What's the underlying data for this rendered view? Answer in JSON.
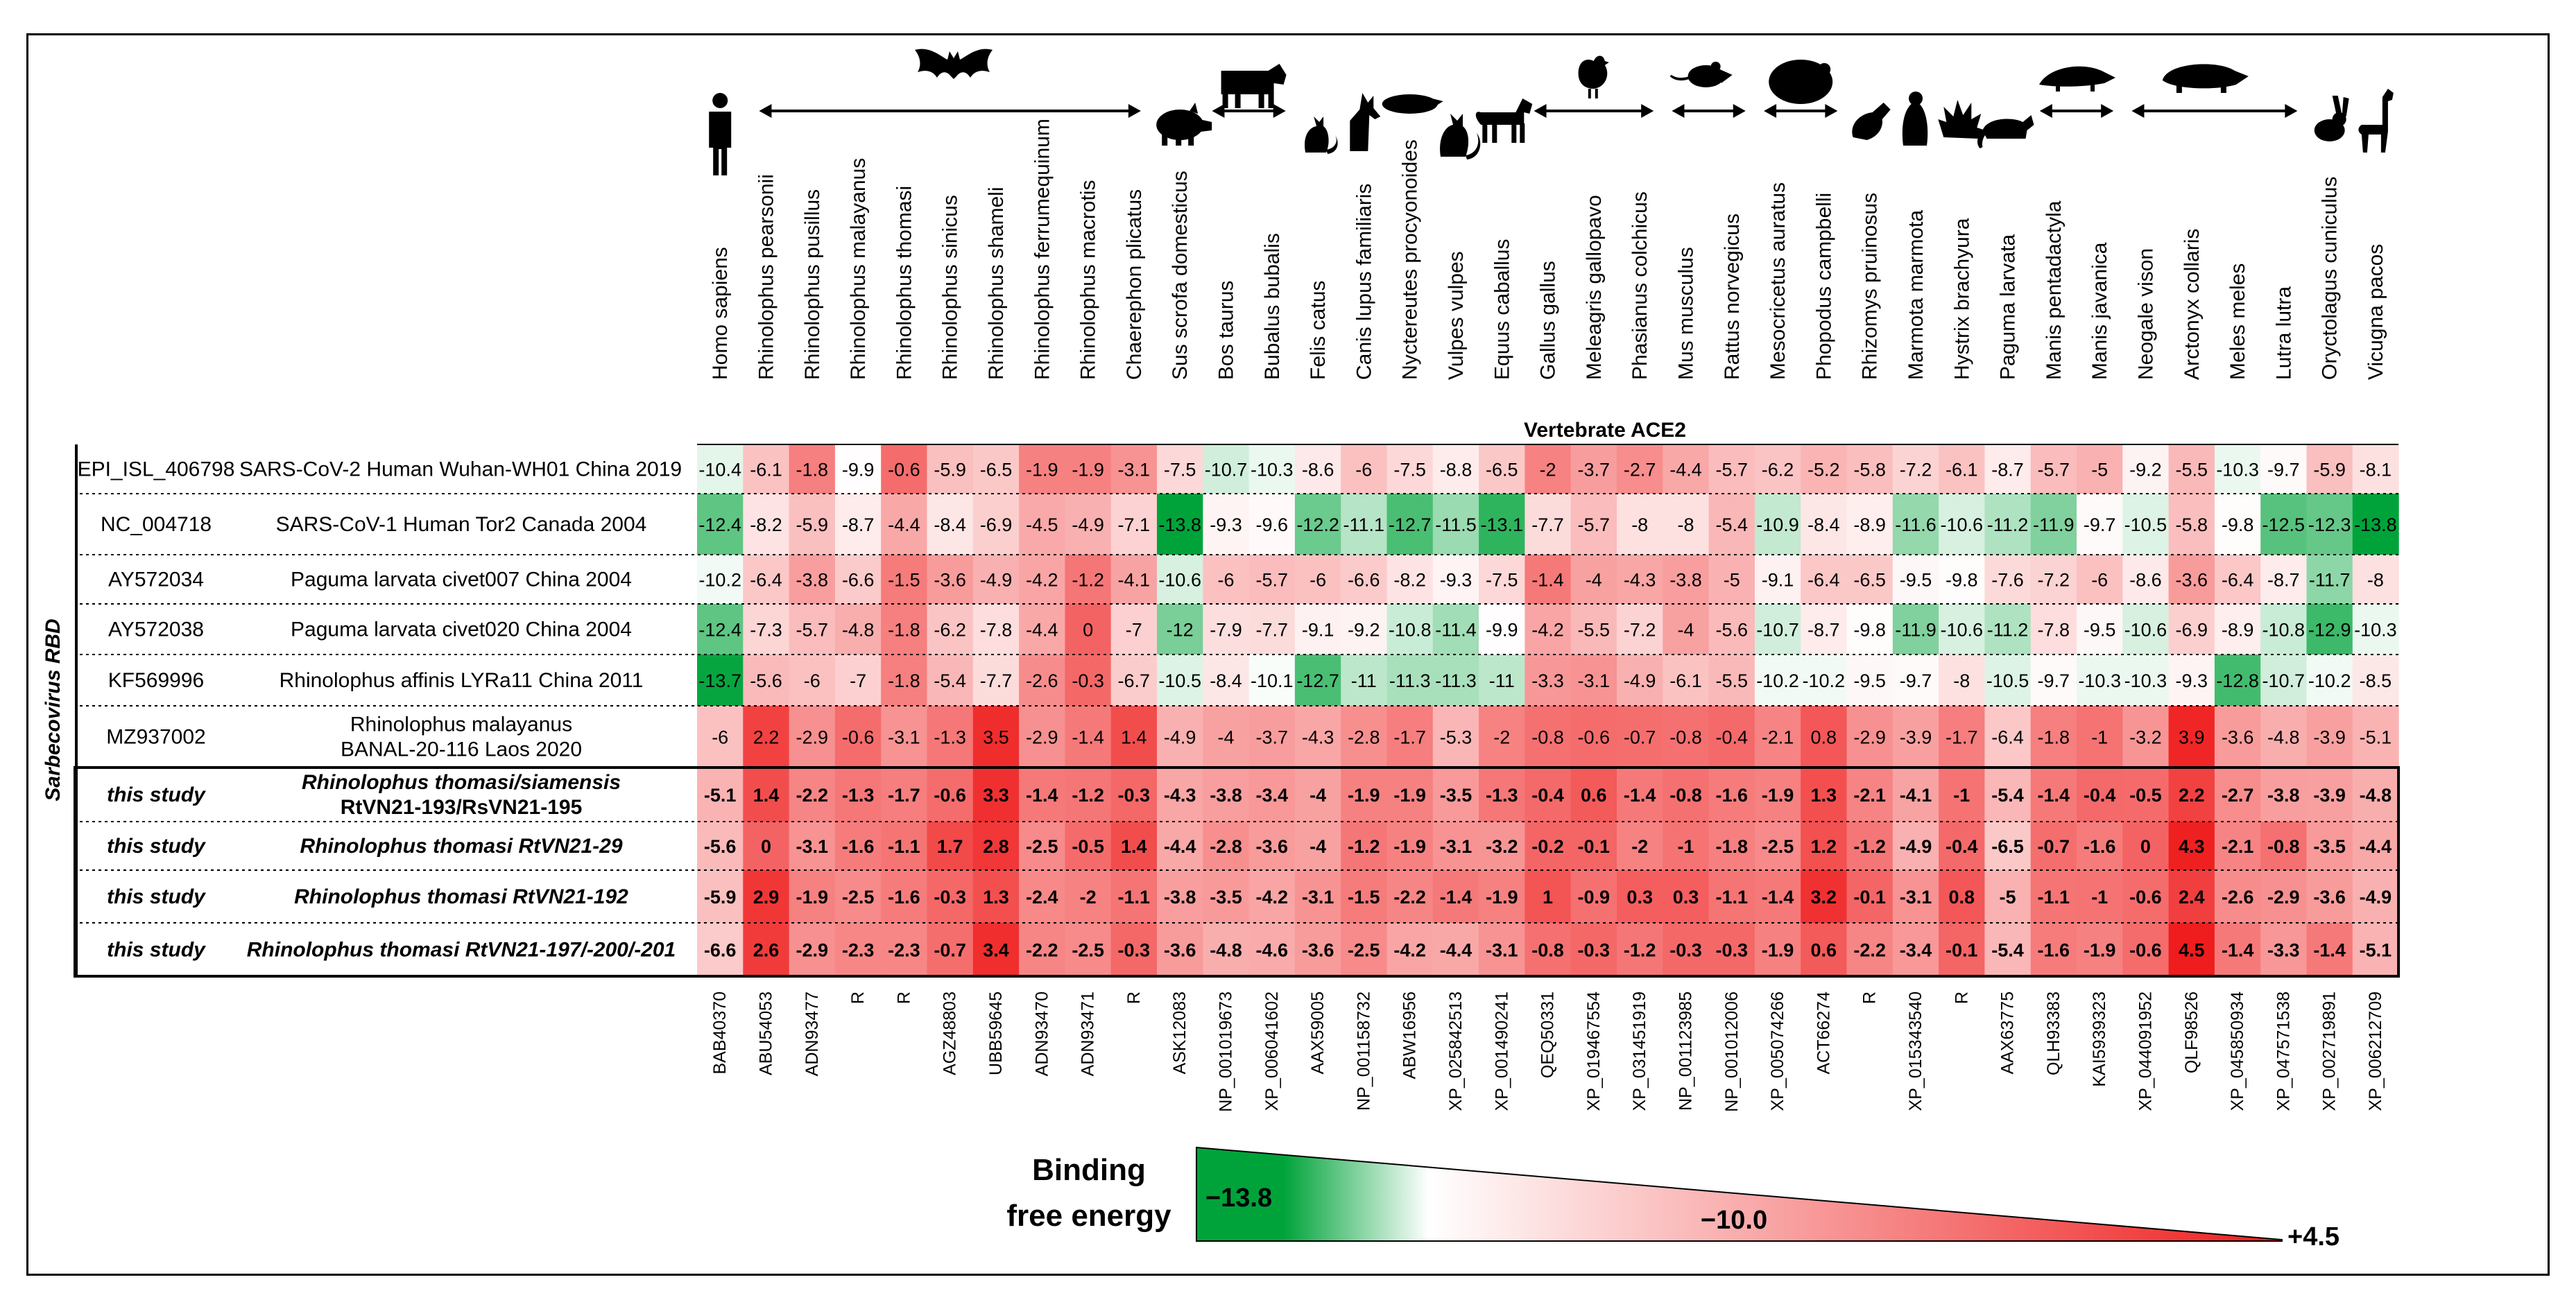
{
  "chart_data": {
    "type": "heatmap",
    "title": "Vertebrate ACE2",
    "ylabel": "Sarbecovirus RBD",
    "columns": [
      {
        "species": "Homo sapiens",
        "accession": "BAB40370",
        "icon": "human-icon"
      },
      {
        "species": "Rhinolophus pearsonii",
        "accession": "ABU54053",
        "icon": "bat-icon"
      },
      {
        "species": "Rhinolophus pusillus",
        "accession": "ADN93477",
        "icon": "bat-icon"
      },
      {
        "species": "Rhinolophus malayanus",
        "accession": "R",
        "icon": "bat-icon"
      },
      {
        "species": "Rhinolophus thomasi",
        "accession": "R",
        "icon": "bat-icon"
      },
      {
        "species": "Rhinolophus sinicus",
        "accession": "AGZ48803",
        "icon": "bat-icon"
      },
      {
        "species": "Rhinolophus shameli",
        "accession": "UBB59645",
        "icon": "bat-icon"
      },
      {
        "species": "Rhinolophus ferrumequinum",
        "accession": "ADN93470",
        "icon": "bat-icon"
      },
      {
        "species": "Rhinolophus macrotis",
        "accession": "ADN93471",
        "icon": "bat-icon"
      },
      {
        "species": "Chaerephon plicatus",
        "accession": "R",
        "icon": "bat-icon"
      },
      {
        "species": "Sus scrofa domesticus",
        "accession": "ASK12083",
        "icon": "pig-icon"
      },
      {
        "species": "Bos taurus",
        "accession": "NP_001019673",
        "icon": "cow-icon"
      },
      {
        "species": "Bubalus bubalis",
        "accession": "XP_006041602",
        "icon": "cow-icon"
      },
      {
        "species": "Felis catus",
        "accession": "AAX59005",
        "icon": "cat-icon"
      },
      {
        "species": "Canis lupus familiaris",
        "accession": "NP_001158732",
        "icon": "dog-icon"
      },
      {
        "species": "Nyctereutes procyonoides",
        "accession": "ABW16956",
        "icon": "raccoon-dog-icon"
      },
      {
        "species": "Vulpes vulpes",
        "accession": "XP_025842513",
        "icon": "fox-icon"
      },
      {
        "species": "Equus caballus",
        "accession": "XP_001490241",
        "icon": "horse-icon"
      },
      {
        "species": "Gallus gallus",
        "accession": "QEQ50331",
        "icon": "bird-icon"
      },
      {
        "species": "Meleagris gallopavo",
        "accession": "XP_019467554",
        "icon": "bird-icon"
      },
      {
        "species": "Phasianus colchicus",
        "accession": "XP_031451919",
        "icon": "bird-icon"
      },
      {
        "species": "Mus musculus",
        "accession": "NP_001123985",
        "icon": "rodent-icon"
      },
      {
        "species": "Rattus norvegicus",
        "accession": "NP_001012006",
        "icon": "rodent-icon"
      },
      {
        "species": "Mesocricetus auratus",
        "accession": "XP_005074266",
        "icon": "hamster-icon"
      },
      {
        "species": "Phopodus campbelli",
        "accession": "ACT66274",
        "icon": "hamster-icon"
      },
      {
        "species": "Rhizomys pruinosus",
        "accession": "R",
        "icon": "bamboo-rat-icon"
      },
      {
        "species": "Marmota marmota",
        "accession": "XP_015343540",
        "icon": "marmot-icon"
      },
      {
        "species": "Hystrix brachyura",
        "accession": "R",
        "icon": "porcupine-icon"
      },
      {
        "species": "Paguma larvata",
        "accession": "AAX63775",
        "icon": "civet-icon"
      },
      {
        "species": "Manis pentadactyla",
        "accession": "QLH93383",
        "icon": "pangolin-icon"
      },
      {
        "species": "Manis javanica",
        "accession": "KAI5939323",
        "icon": "pangolin-icon"
      },
      {
        "species": "Neogale vison",
        "accession": "XP_044091952",
        "icon": "badger-icon"
      },
      {
        "species": "Arctonyx collaris",
        "accession": "QLF98526",
        "icon": "badger-icon"
      },
      {
        "species": "Meles meles",
        "accession": "XP_045850934",
        "icon": "badger-icon"
      },
      {
        "species": "Lutra lutra",
        "accession": "XP_047571538",
        "icon": "badger-icon"
      },
      {
        "species": "Oryctolagus cuniculus",
        "accession": "XP_002719891",
        "icon": "rabbit-icon"
      },
      {
        "species": "Vicugna pacos",
        "accession": "XP_006212709",
        "icon": "alpaca-icon"
      }
    ],
    "rows": [
      {
        "id": "EPI_ISL_406798",
        "name": "SARS-CoV-2 Human Wuhan-WH01 China 2019",
        "name2": "",
        "bold": false,
        "values": [
          -10.4,
          -6.1,
          -1.8,
          -9.9,
          -0.6,
          -5.9,
          -6.5,
          -1.9,
          -1.9,
          -3.1,
          -7.5,
          -10.7,
          -10.3,
          -8.6,
          -6.0,
          -7.5,
          -8.8,
          -6.5,
          -2.0,
          -3.7,
          -2.7,
          -4.4,
          -5.7,
          -6.2,
          -5.2,
          -5.8,
          -7.2,
          -6.1,
          -8.7,
          -5.7,
          -5.0,
          -9.2,
          -5.5,
          -10.3,
          -9.7,
          -5.9,
          -8.1
        ]
      },
      {
        "id": "NC_004718",
        "name": "SARS-CoV-1 Human Tor2 Canada 2004",
        "name2": "",
        "bold": false,
        "values": [
          -12.4,
          -8.2,
          -5.9,
          -8.7,
          -4.4,
          -8.4,
          -6.9,
          -4.5,
          -4.9,
          -7.1,
          -13.8,
          -9.3,
          -9.6,
          -12.2,
          -11.1,
          -12.7,
          -11.5,
          -13.1,
          -7.7,
          -5.7,
          -8.0,
          -8.0,
          -5.4,
          -10.9,
          -8.4,
          -8.9,
          -11.6,
          -10.6,
          -11.2,
          -11.9,
          -9.7,
          -10.5,
          -5.8,
          -9.8,
          -12.5,
          -12.3,
          -13.8
        ]
      },
      {
        "id": "AY572034",
        "name": "Paguma larvata civet007 China 2004",
        "name2": "",
        "bold": false,
        "values": [
          -10.2,
          -6.4,
          -3.8,
          -6.6,
          -1.5,
          -3.6,
          -4.9,
          -4.2,
          -1.2,
          -4.1,
          -10.6,
          -6.0,
          -5.7,
          -6.0,
          -6.6,
          -8.2,
          -9.3,
          -7.5,
          -1.4,
          -4.0,
          -4.3,
          -3.8,
          -5.0,
          -9.1,
          -6.4,
          -6.5,
          -9.5,
          -9.8,
          -7.6,
          -7.2,
          -6.0,
          -8.6,
          -3.6,
          -6.4,
          -8.7,
          -11.7,
          -8.0
        ]
      },
      {
        "id": "AY572038",
        "name": "Paguma larvata civet020 China 2004",
        "name2": "",
        "bold": false,
        "values": [
          -12.4,
          -7.3,
          -5.7,
          -4.8,
          -1.8,
          -6.2,
          -7.8,
          -4.4,
          0.0,
          -7.0,
          -12.0,
          -7.9,
          -7.7,
          -9.1,
          -9.2,
          -10.8,
          -11.4,
          -9.9,
          -4.2,
          -5.5,
          -7.2,
          -4.0,
          -5.6,
          -10.7,
          -8.7,
          -9.8,
          -11.9,
          -10.6,
          -11.2,
          -7.8,
          -9.5,
          -10.6,
          -6.9,
          -8.9,
          -10.8,
          -12.9,
          -10.3
        ]
      },
      {
        "id": "KF569996",
        "name": "Rhinolophus affinis LYRa11 China 2011",
        "name2": "",
        "bold": false,
        "values": [
          -13.7,
          -5.6,
          -6.0,
          -7.0,
          -1.8,
          -5.4,
          -7.7,
          -2.6,
          -0.3,
          -6.7,
          -10.5,
          -8.4,
          -10.1,
          -12.7,
          -11.0,
          -11.3,
          -11.3,
          -11.0,
          -3.3,
          -3.1,
          -4.9,
          -6.1,
          -5.5,
          -10.2,
          -10.2,
          -9.5,
          -9.7,
          -8.0,
          -10.5,
          -9.7,
          -10.3,
          -10.3,
          -9.3,
          -12.8,
          -10.7,
          -10.2,
          -8.5
        ]
      },
      {
        "id": "MZ937002",
        "name": "Rhinolophus malayanus",
        "name2": "BANAL-20-116 Laos 2020",
        "bold": false,
        "values": [
          -6.0,
          2.2,
          -2.9,
          -0.6,
          -3.1,
          -1.3,
          3.5,
          -2.9,
          -1.4,
          1.4,
          -4.9,
          -4.0,
          -3.7,
          -4.3,
          -2.8,
          -1.7,
          -5.3,
          -2.0,
          -0.8,
          -0.6,
          -0.7,
          -0.8,
          -0.4,
          -2.1,
          0.8,
          -2.9,
          -3.9,
          -1.7,
          -6.4,
          -1.8,
          -1.0,
          -3.2,
          3.9,
          -3.6,
          -4.8,
          -3.9,
          -5.1
        ]
      },
      {
        "id": "this study",
        "name": "Rhinolophus thomasi/siamensis",
        "name2": "RtVN21-193/RsVN21-195",
        "bold": true,
        "values": [
          -5.1,
          1.4,
          -2.2,
          -1.3,
          -1.7,
          -0.6,
          3.3,
          -1.4,
          -1.2,
          -0.3,
          -4.3,
          -3.8,
          -3.4,
          -4.0,
          -1.9,
          -1.9,
          -3.5,
          -1.3,
          -0.4,
          0.6,
          -1.4,
          -0.8,
          -1.6,
          -1.9,
          1.3,
          -2.1,
          -4.1,
          -1.0,
          -5.4,
          -1.4,
          -0.4,
          -0.5,
          2.2,
          -2.7,
          -3.8,
          -3.9,
          -4.8
        ]
      },
      {
        "id": "this study",
        "name": "Rhinolophus thomasi RtVN21-29",
        "name2": "",
        "bold": true,
        "values": [
          -5.6,
          0.0,
          -3.1,
          -1.6,
          -1.1,
          1.7,
          2.8,
          -2.5,
          -0.5,
          1.4,
          -4.4,
          -2.8,
          -3.6,
          -4.0,
          -1.2,
          -1.9,
          -3.1,
          -3.2,
          -0.2,
          -0.1,
          -2.0,
          -1.0,
          -1.8,
          -2.5,
          1.2,
          -1.2,
          -4.9,
          -0.4,
          -6.5,
          -0.7,
          -1.6,
          0.0,
          4.3,
          -2.1,
          -0.8,
          -3.5,
          -4.4
        ]
      },
      {
        "id": "this study",
        "name": "Rhinolophus thomasi RtVN21-192",
        "name2": "",
        "bold": true,
        "values": [
          -5.9,
          2.9,
          -1.9,
          -2.5,
          -1.6,
          -0.3,
          1.3,
          -2.4,
          -2.0,
          -1.1,
          -3.8,
          -3.5,
          -4.2,
          -3.1,
          -1.5,
          -2.2,
          -1.4,
          -1.9,
          1.0,
          -0.9,
          0.3,
          0.3,
          -1.1,
          -1.4,
          3.2,
          -0.1,
          -3.1,
          0.8,
          -5.0,
          -1.1,
          -1.0,
          -0.6,
          2.4,
          -2.6,
          -2.9,
          -3.6,
          -4.9
        ]
      },
      {
        "id": "this study",
        "name": "Rhinolophus thomasi RtVN21-197/-200/-201",
        "name2": "",
        "bold": true,
        "values": [
          -6.6,
          2.6,
          -2.9,
          -2.3,
          -2.3,
          -0.7,
          3.4,
          -2.2,
          -2.5,
          -0.3,
          -3.6,
          -4.8,
          -4.6,
          -3.6,
          -2.5,
          -4.2,
          -4.4,
          -3.1,
          -0.8,
          -0.3,
          -1.2,
          -0.3,
          -0.3,
          -1.9,
          0.6,
          -2.2,
          -3.4,
          -0.1,
          -5.4,
          -1.6,
          -1.9,
          -0.6,
          4.5,
          -1.4,
          -3.3,
          -1.4,
          -5.1
        ]
      }
    ],
    "scale": {
      "min": -13.8,
      "mid": -10.0,
      "max": 4.5,
      "min_label": "−13.8",
      "mid_label": "−10.0",
      "max_label": "+4.5",
      "low_color": "#00a33a",
      "mid_color": "#ffffff",
      "high_color": "#ef1d1d"
    },
    "legend_title_line1": "Binding",
    "legend_title_line2": "free energy"
  }
}
